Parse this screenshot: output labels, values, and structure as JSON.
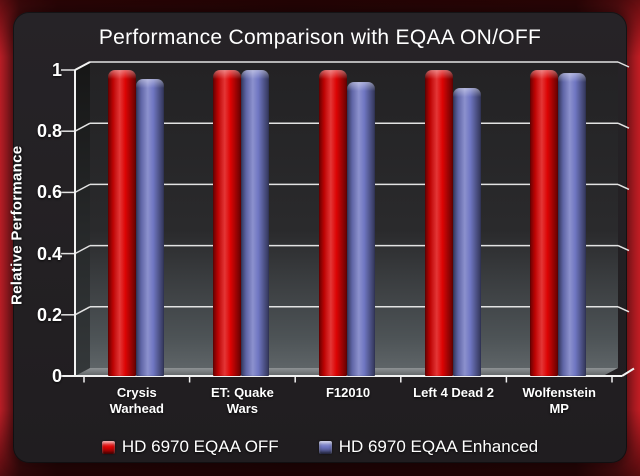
{
  "title": "Performance Comparison with EQAA ON/OFF",
  "chart_data": {
    "type": "bar",
    "title": "Performance Comparison with EQAA ON/OFF",
    "xlabel": "",
    "ylabel": "Relative Performance",
    "ylim": [
      0,
      1
    ],
    "yticks": [
      "0",
      "0.2",
      "0.4",
      "0.6",
      "0.8",
      "1"
    ],
    "grid": true,
    "legend_position": "bottom",
    "style": "3d-bars-dark",
    "categories": [
      "Crysis Warhead",
      "ET: Quake Wars",
      "F12010",
      "Left 4 Dead 2",
      "Wolfenstein MP"
    ],
    "category_label_lines": [
      [
        "Crysis",
        "Warhead"
      ],
      [
        "ET: Quake",
        "Wars"
      ],
      [
        "F12010"
      ],
      [
        "Left 4 Dead 2"
      ],
      [
        "Wolfenstein",
        "MP"
      ]
    ],
    "series": [
      {
        "name": "HD 6970 EQAA OFF",
        "color": "#dd0404",
        "values": [
          1.0,
          1.0,
          1.0,
          1.0,
          1.0
        ]
      },
      {
        "name": "HD 6970 EQAA Enhanced",
        "color": "#6f76c2",
        "values": [
          0.97,
          1.0,
          0.96,
          0.94,
          0.99
        ]
      }
    ]
  },
  "colors": {
    "frame_red": "#c41d24",
    "panel_bg": "#242124",
    "wall_top": "#232224",
    "wall_bottom": "#5e6467",
    "gridline": "#e3e3e3",
    "axis": "#f2f2f2",
    "text": "#ffffff"
  }
}
